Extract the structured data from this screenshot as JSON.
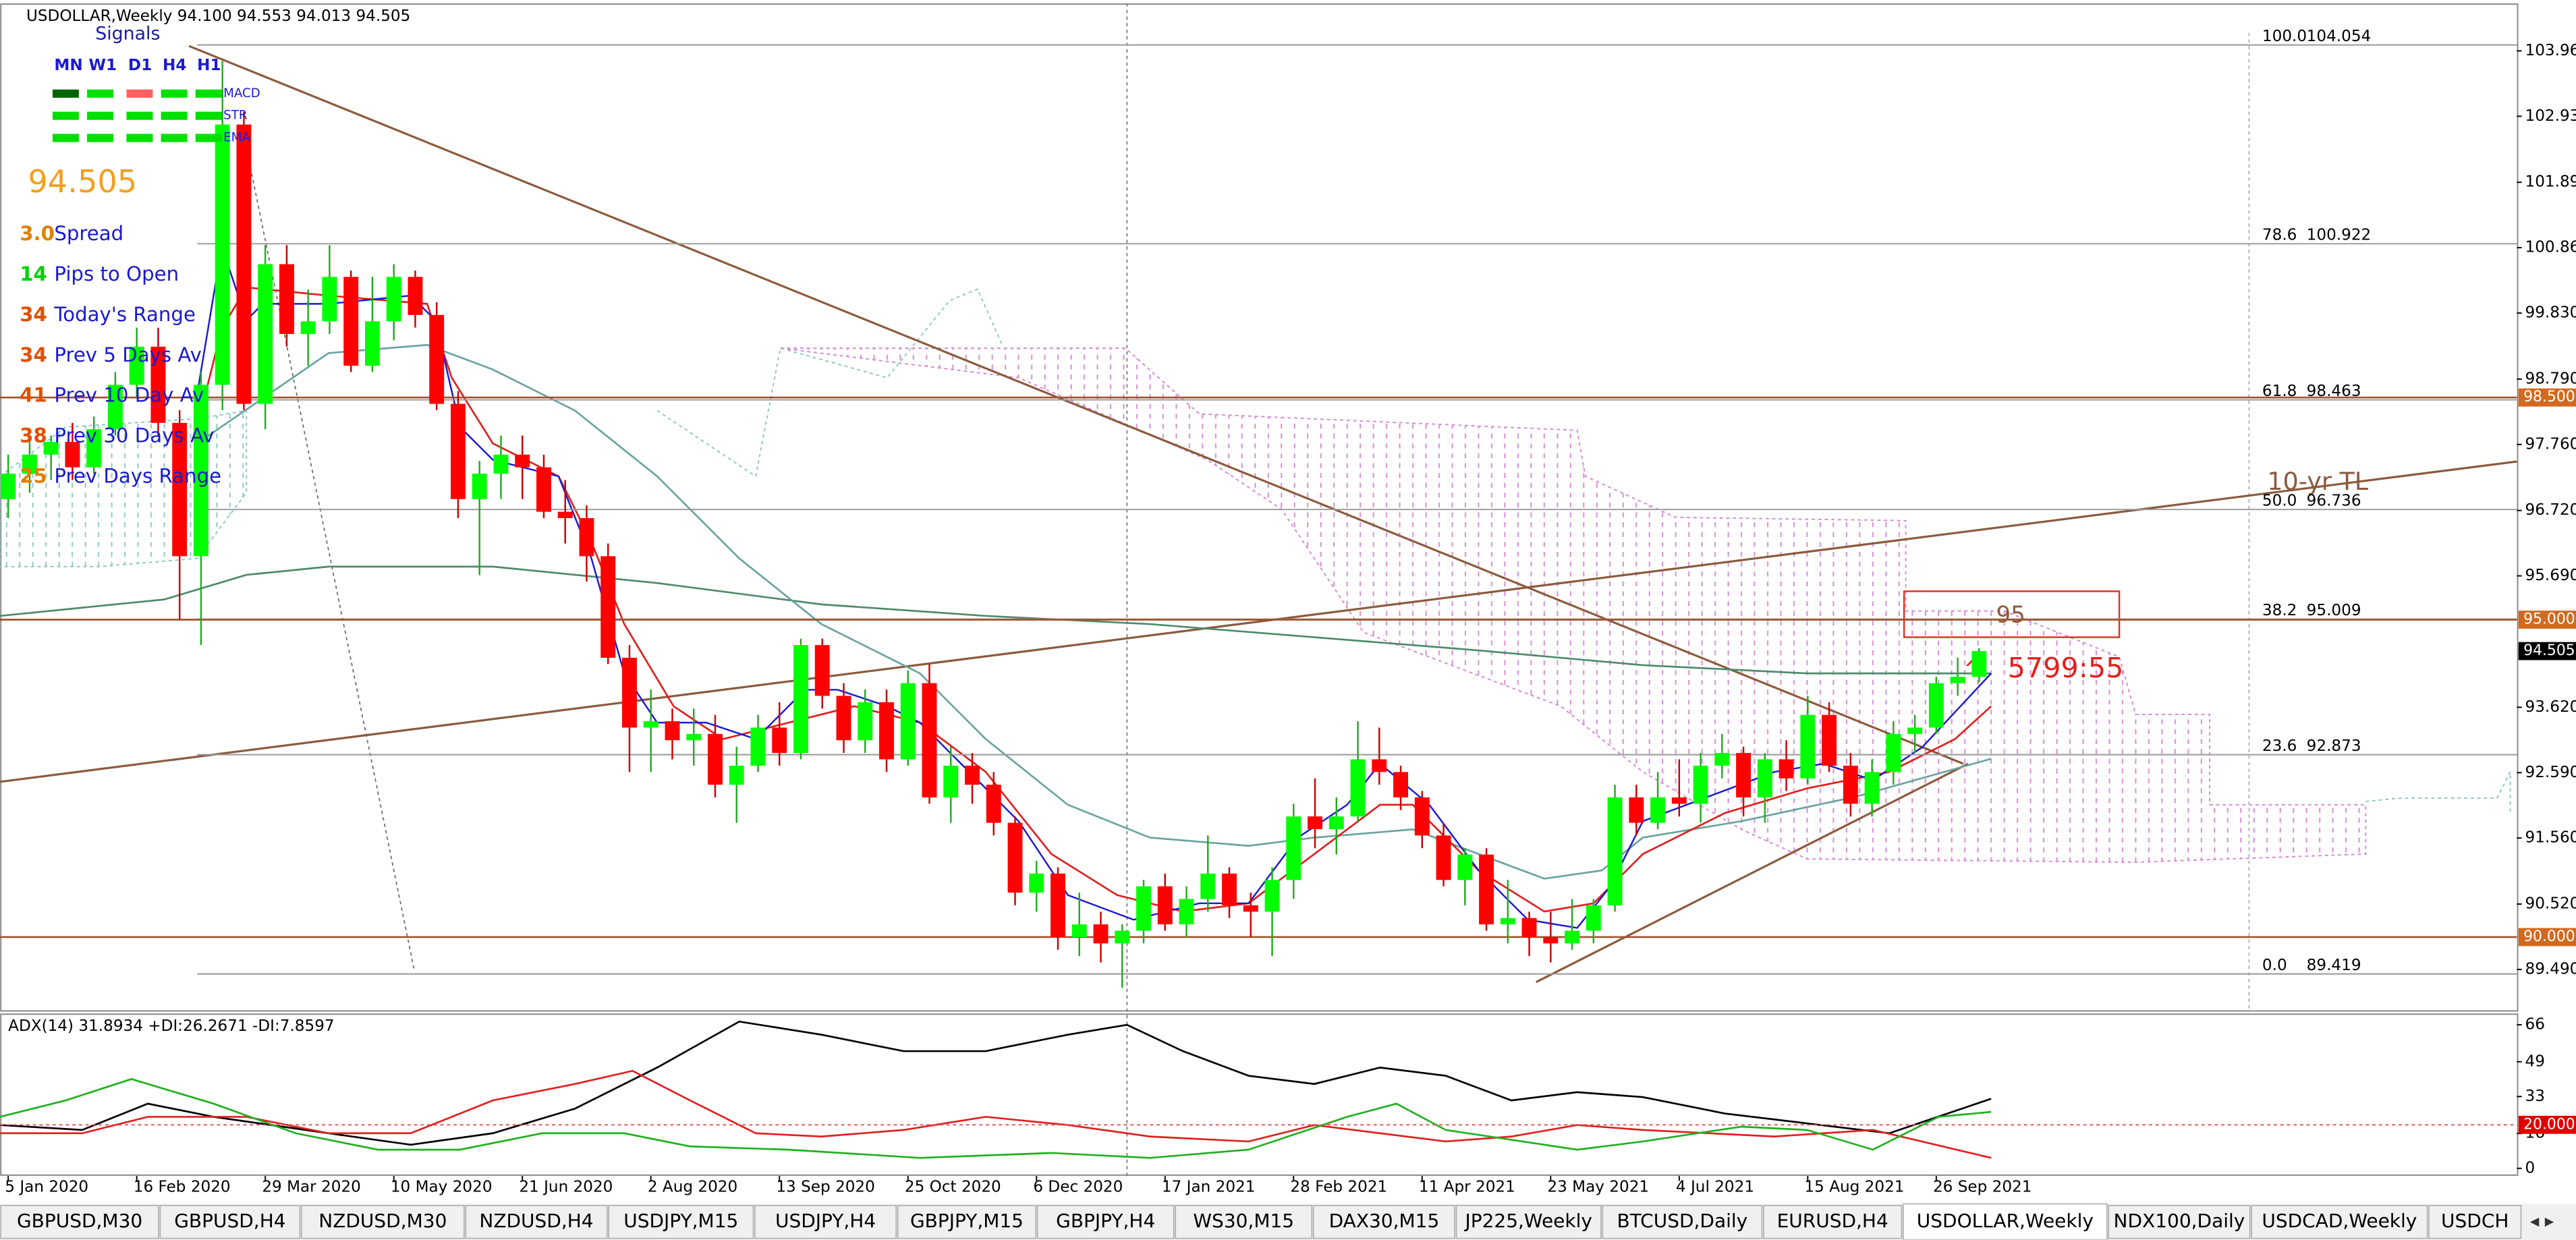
{
  "chart_data": {
    "type": "candlestick",
    "title": "USDOLLAR,Weekly  94.100 94.553 94.013 94.505",
    "ylim": [
      88.85,
      104.71
    ],
    "yticks": [
      {
        "value": 103.96,
        "label": "103.960"
      },
      {
        "value": 102.93,
        "label": "102.930"
      },
      {
        "value": 101.89,
        "label": "101.890"
      },
      {
        "value": 100.86,
        "label": "100.860"
      },
      {
        "value": 99.83,
        "label": "99.830"
      },
      {
        "value": 98.79,
        "label": "98.790"
      },
      {
        "value": 97.76,
        "label": "97.760"
      },
      {
        "value": 96.72,
        "label": "96.720"
      },
      {
        "value": 95.69,
        "label": "95.690"
      },
      {
        "value": 93.62,
        "label": "93.620"
      },
      {
        "value": 92.59,
        "label": "92.590"
      },
      {
        "value": 91.56,
        "label": "91.560"
      },
      {
        "value": 90.52,
        "label": "90.520"
      },
      {
        "value": 89.49,
        "label": "89.490"
      }
    ],
    "levels": [
      {
        "value": 98.5,
        "label": "98.500",
        "color": "#d2691e",
        "hline": true
      },
      {
        "value": 95,
        "label": "95.000",
        "color": "#d2691e",
        "hline": true
      },
      {
        "value": 94.505,
        "label": "94.505",
        "color": "#000000",
        "hline": false
      },
      {
        "value": 90,
        "label": "90.000",
        "color": "#d2691e",
        "hline": true
      }
    ],
    "fibs": [
      {
        "level": "100.0",
        "price": 104.054
      },
      {
        "level": "78.6",
        "price": 100.922
      },
      {
        "level": "61.8",
        "price": 98.463
      },
      {
        "level": "50.0",
        "price": 96.736
      },
      {
        "level": "38.2",
        "price": 95.009
      },
      {
        "level": "23.6",
        "price": 92.873
      },
      {
        "level": "0.0",
        "price": 89.419
      }
    ],
    "x_labels": [
      "5 Jan 2020",
      "16 Feb 2020",
      "29 Mar 2020",
      "10 May 2020",
      "21 Jun 2020",
      "2 Aug 2020",
      "13 Sep 2020",
      "25 Oct 2020",
      "6 Dec 2020",
      "17 Jan 2021",
      "28 Feb 2021",
      "11 Apr 2021",
      "23 May 2021",
      "4 Jul 2021",
      "15 Aug 2021",
      "26 Sep 2021"
    ],
    "up_color": "#00ff00",
    "down_color": "#ff0000",
    "candles": [
      [
        96.9,
        97.6,
        96.6,
        97.3
      ],
      [
        97.3,
        97.8,
        97.0,
        97.6
      ],
      [
        97.6,
        97.9,
        97.2,
        97.8
      ],
      [
        97.8,
        98.1,
        97.2,
        97.4
      ],
      [
        97.4,
        98.2,
        97.3,
        98.0
      ],
      [
        98.0,
        98.9,
        97.9,
        98.7
      ],
      [
        98.7,
        99.6,
        98.5,
        99.3
      ],
      [
        99.3,
        99.6,
        97.9,
        98.1
      ],
      [
        98.1,
        98.3,
        95.0,
        96.0
      ],
      [
        96.0,
        98.9,
        94.6,
        98.7
      ],
      [
        98.7,
        103.8,
        98.3,
        102.8
      ],
      [
        102.8,
        103.0,
        98.3,
        98.4
      ],
      [
        98.4,
        100.9,
        98.0,
        100.6
      ],
      [
        100.6,
        100.9,
        99.3,
        99.5
      ],
      [
        99.5,
        100.2,
        99.0,
        99.7
      ],
      [
        99.7,
        100.9,
        99.5,
        100.4
      ],
      [
        100.4,
        100.5,
        98.9,
        99.0
      ],
      [
        99.0,
        100.4,
        98.9,
        99.7
      ],
      [
        99.7,
        100.6,
        99.4,
        100.4
      ],
      [
        100.4,
        100.5,
        99.6,
        99.8
      ],
      [
        99.8,
        100.0,
        98.3,
        98.4
      ],
      [
        98.4,
        98.6,
        96.6,
        96.9
      ],
      [
        96.9,
        97.5,
        95.7,
        97.3
      ],
      [
        97.3,
        97.9,
        96.9,
        97.6
      ],
      [
        97.6,
        97.9,
        96.9,
        97.4
      ],
      [
        97.4,
        97.6,
        96.6,
        96.7
      ],
      [
        96.7,
        97.2,
        96.2,
        96.6
      ],
      [
        96.6,
        96.8,
        95.6,
        96.0
      ],
      [
        96.0,
        96.2,
        94.3,
        94.4
      ],
      [
        94.4,
        94.6,
        92.6,
        93.3
      ],
      [
        93.3,
        93.9,
        92.6,
        93.4
      ],
      [
        93.4,
        93.6,
        92.8,
        93.1
      ],
      [
        93.1,
        93.6,
        92.7,
        93.2
      ],
      [
        93.2,
        93.5,
        92.2,
        92.4
      ],
      [
        92.4,
        93.0,
        91.8,
        92.7
      ],
      [
        92.7,
        93.5,
        92.6,
        93.3
      ],
      [
        93.3,
        93.7,
        92.7,
        92.9
      ],
      [
        92.9,
        94.7,
        92.8,
        94.6
      ],
      [
        94.6,
        94.7,
        93.6,
        93.8
      ],
      [
        93.8,
        94.0,
        92.9,
        93.1
      ],
      [
        93.1,
        93.9,
        92.9,
        93.7
      ],
      [
        93.7,
        93.9,
        92.6,
        92.8
      ],
      [
        92.8,
        94.2,
        92.7,
        94.0
      ],
      [
        94.0,
        94.3,
        92.1,
        92.2
      ],
      [
        92.2,
        93.0,
        91.8,
        92.7
      ],
      [
        92.7,
        92.9,
        92.1,
        92.4
      ],
      [
        92.4,
        92.6,
        91.6,
        91.8
      ],
      [
        91.8,
        91.9,
        90.5,
        90.7
      ],
      [
        90.7,
        91.2,
        90.4,
        91.0
      ],
      [
        91.0,
        91.1,
        89.8,
        90.0
      ],
      [
        90.0,
        90.7,
        89.7,
        90.2
      ],
      [
        90.2,
        90.4,
        89.6,
        89.9
      ],
      [
        89.9,
        90.2,
        89.2,
        90.1
      ],
      [
        90.1,
        90.9,
        89.9,
        90.8
      ],
      [
        90.8,
        91.0,
        90.1,
        90.2
      ],
      [
        90.2,
        90.8,
        90.0,
        90.6
      ],
      [
        90.6,
        91.6,
        90.4,
        91.0
      ],
      [
        91.0,
        91.1,
        90.3,
        90.5
      ],
      [
        90.5,
        90.7,
        90.0,
        90.4
      ],
      [
        90.4,
        91.1,
        89.7,
        90.9
      ],
      [
        90.9,
        92.1,
        90.6,
        91.9
      ],
      [
        91.9,
        92.5,
        91.4,
        91.7
      ],
      [
        91.7,
        92.2,
        91.3,
        91.9
      ],
      [
        91.9,
        93.4,
        91.8,
        92.8
      ],
      [
        92.8,
        93.3,
        92.4,
        92.6
      ],
      [
        92.6,
        92.7,
        92.0,
        92.2
      ],
      [
        92.2,
        92.3,
        91.4,
        91.6
      ],
      [
        91.6,
        91.8,
        90.8,
        90.9
      ],
      [
        90.9,
        91.4,
        90.5,
        91.3
      ],
      [
        91.3,
        91.4,
        90.1,
        90.2
      ],
      [
        90.2,
        90.9,
        89.9,
        90.3
      ],
      [
        90.3,
        90.4,
        89.7,
        90.0
      ],
      [
        90.0,
        90.4,
        89.6,
        89.9
      ],
      [
        89.9,
        90.6,
        89.8,
        90.1
      ],
      [
        90.1,
        90.6,
        89.9,
        90.5
      ],
      [
        90.5,
        92.4,
        90.4,
        92.2
      ],
      [
        92.2,
        92.4,
        91.6,
        91.8
      ],
      [
        91.8,
        92.6,
        91.7,
        92.2
      ],
      [
        92.2,
        92.8,
        91.9,
        92.1
      ],
      [
        92.1,
        92.9,
        91.8,
        92.7
      ],
      [
        92.7,
        93.2,
        92.5,
        92.9
      ],
      [
        92.9,
        93.0,
        91.9,
        92.2
      ],
      [
        92.2,
        92.9,
        91.8,
        92.8
      ],
      [
        92.8,
        93.1,
        92.3,
        92.5
      ],
      [
        92.5,
        93.8,
        92.4,
        93.5
      ],
      [
        93.5,
        93.7,
        92.6,
        92.7
      ],
      [
        92.7,
        92.9,
        91.9,
        92.1
      ],
      [
        92.1,
        92.8,
        91.9,
        92.6
      ],
      [
        92.6,
        93.4,
        92.4,
        93.2
      ],
      [
        93.2,
        93.5,
        92.9,
        93.3
      ],
      [
        93.3,
        94.1,
        93.2,
        94.0
      ],
      [
        94.0,
        94.4,
        93.8,
        94.1
      ],
      [
        94.1,
        94.553,
        94.013,
        94.505
      ]
    ],
    "annotations": {
      "trendline": "10-yr TL",
      "box": "95",
      "arrow": "^",
      "countdown": "5799:55"
    },
    "adx": {
      "header": "ADX(14) 31.8934 +DI:26.2671 -DI:7.8597",
      "ylim": [
        -3.5,
        70.5
      ],
      "yticks": [
        66,
        49,
        33,
        16,
        0
      ],
      "level": {
        "value": 20,
        "label": "20.000"
      }
    }
  },
  "panel": {
    "title": "Signals",
    "timeframes": [
      "MN",
      "W1",
      "D1",
      "H4",
      "H1"
    ],
    "rows": [
      {
        "name": "MACD",
        "colors": [
          "#006400",
          "#00e000",
          "#ff6060",
          "#00e000",
          "#00e000"
        ]
      },
      {
        "name": "STR",
        "colors": [
          "#00e000",
          "#00e000",
          "#00e000",
          "#00e000",
          "#00e000"
        ]
      },
      {
        "name": "EMA",
        "colors": [
          "#00e000",
          "#00e000",
          "#00e000",
          "#00e000",
          "#00e000"
        ]
      }
    ],
    "price": "94.505",
    "stats": [
      {
        "value": "3.0",
        "label": "Spread",
        "color": "#e08000"
      },
      {
        "value": "14",
        "label": "Pips to Open",
        "color": "#00d000"
      },
      {
        "value": "34",
        "label": "Today's Range",
        "color": "#e05000"
      },
      {
        "value": "34",
        "label": "Prev 5 Days Av",
        "color": "#e05000"
      },
      {
        "value": "41",
        "label": "Prev 10 Day Av",
        "color": "#e05000"
      },
      {
        "value": "38",
        "label": "Prev 30 Days Av",
        "color": "#e05000"
      },
      {
        "value": "25",
        "label": "Prev Days Range",
        "color": "#e08000"
      }
    ]
  },
  "tabs": {
    "items": [
      "GBPUSD,M30",
      "GBPUSD,H4",
      "NZDUSD,M30",
      "NZDUSD,H4",
      "USDJPY,M15",
      "USDJPY,H4",
      "GBPJPY,M15",
      "GBPJPY,H4",
      "WS30,M15",
      "DAX30,M15",
      "JP225,Weekly",
      "BTCUSD,Daily",
      "EURUSD,H4",
      "USDOLLAR,Weekly",
      "NDX100,Daily",
      "USDCAD,Weekly",
      "USDCH"
    ],
    "active": 13
  }
}
